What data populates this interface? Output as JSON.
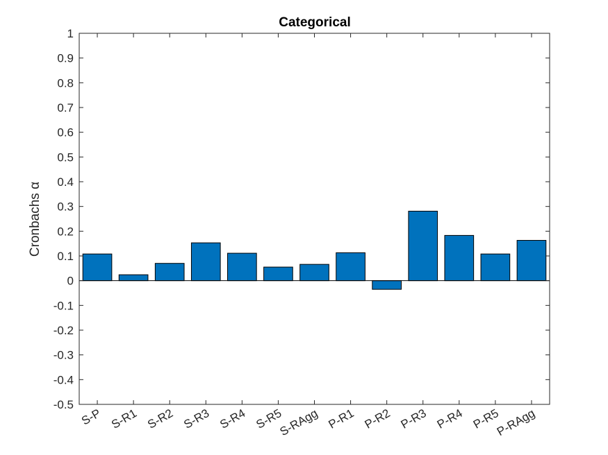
{
  "chart_data": {
    "type": "bar",
    "title": "Categorical",
    "xlabel": "",
    "ylabel": "Cronbachs α",
    "categories": [
      "S-P",
      "S-R1",
      "S-R2",
      "S-R3",
      "S-R4",
      "S-R5",
      "S-RAgg",
      "P-R1",
      "P-R2",
      "P-R3",
      "P-R4",
      "P-R5",
      "P-RAgg"
    ],
    "values": [
      0.108,
      0.024,
      0.07,
      0.153,
      0.111,
      0.055,
      0.066,
      0.113,
      -0.035,
      0.281,
      0.183,
      0.108,
      0.163
    ],
    "ylim": [
      -0.5,
      1
    ],
    "yticks": [
      "-0.5",
      "-0.4",
      "-0.3",
      "-0.2",
      "-0.1",
      "0",
      "0.1",
      "0.2",
      "0.3",
      "0.4",
      "0.5",
      "0.6",
      "0.7",
      "0.8",
      "0.9",
      "1"
    ],
    "grid": false,
    "bar_color": "#0072BD",
    "edge_color": "#000000"
  }
}
